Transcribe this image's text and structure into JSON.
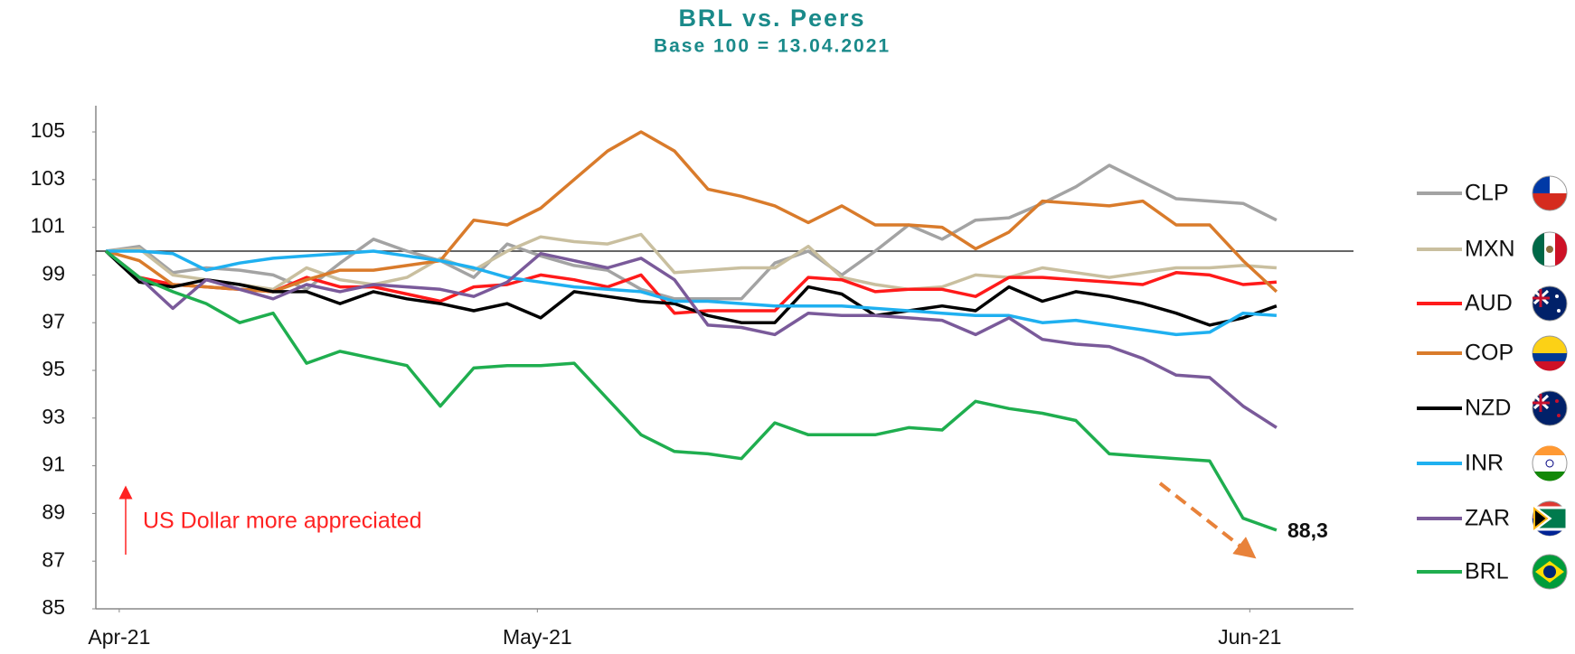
{
  "chart_data": {
    "type": "line",
    "title": "BRL vs. Peers",
    "subtitle": "Base 100 = 13.04.2021",
    "x": [
      0,
      1,
      2,
      3,
      4,
      5,
      6,
      7,
      8,
      9,
      10,
      11,
      12,
      13,
      14,
      15,
      16,
      17,
      18,
      19,
      20,
      21,
      22,
      23,
      24,
      25,
      26,
      27,
      28,
      29,
      30,
      31,
      32,
      33,
      34,
      35
    ],
    "xlim": [
      -0.3,
      37.3
    ],
    "xticks": [
      {
        "value": 0.4,
        "label": "Apr-21"
      },
      {
        "value": 12.9,
        "label": "May-21"
      },
      {
        "value": 34.2,
        "label": "Jun-21"
      }
    ],
    "ylim": [
      85,
      106.1
    ],
    "yticks": [
      85,
      87,
      89,
      91,
      93,
      95,
      97,
      99,
      101,
      103,
      105
    ],
    "grid": false,
    "reference_line": 100,
    "legend": "right",
    "series": [
      {
        "name": "CLP",
        "color": "#a3a3a3",
        "values": [
          100,
          100.2,
          99.1,
          99.3,
          99.2,
          99.0,
          98.4,
          99.5,
          100.5,
          100.0,
          99.6,
          98.9,
          100.3,
          99.8,
          99.4,
          99.2,
          98.4,
          98.0,
          98.0,
          98.0,
          99.5,
          100.0,
          99.0,
          100.0,
          101.1,
          100.5,
          101.3,
          101.4,
          102.0,
          102.7,
          103.6,
          102.9,
          102.2,
          102.1,
          102.0,
          101.3
        ]
      },
      {
        "name": "MXN",
        "color": "#c9bf9f",
        "values": [
          100,
          100.1,
          99.0,
          98.8,
          98.6,
          98.4,
          99.3,
          98.8,
          98.6,
          98.9,
          99.7,
          99.2,
          100.0,
          100.6,
          100.4,
          100.3,
          100.7,
          99.1,
          99.2,
          99.3,
          99.3,
          100.2,
          98.9,
          98.6,
          98.4,
          98.5,
          99.0,
          98.9,
          99.3,
          99.1,
          98.9,
          99.1,
          99.3,
          99.3,
          99.4,
          99.3
        ]
      },
      {
        "name": "AUD",
        "color": "#ff1a1a",
        "values": [
          100,
          98.9,
          98.6,
          98.5,
          98.4,
          98.3,
          98.9,
          98.5,
          98.5,
          98.2,
          97.9,
          98.5,
          98.6,
          99.0,
          98.8,
          98.5,
          99.0,
          97.4,
          97.5,
          97.5,
          97.5,
          98.9,
          98.8,
          98.3,
          98.4,
          98.4,
          98.1,
          98.9,
          98.9,
          98.8,
          98.7,
          98.6,
          99.1,
          99.0,
          98.6,
          98.7
        ]
      },
      {
        "name": "COP",
        "color": "#d97b2b",
        "values": [
          100,
          99.6,
          98.6,
          98.5,
          98.4,
          98.3,
          98.8,
          99.2,
          99.2,
          99.4,
          99.6,
          101.3,
          101.1,
          101.8,
          103.0,
          104.2,
          105.0,
          104.2,
          102.6,
          102.3,
          101.9,
          101.2,
          101.9,
          101.1,
          101.1,
          101.0,
          100.1,
          100.8,
          102.1,
          102.0,
          101.9,
          102.1,
          101.1,
          101.1,
          99.6,
          98.3
        ]
      },
      {
        "name": "NZD",
        "color": "#000000",
        "values": [
          100,
          98.7,
          98.5,
          98.8,
          98.6,
          98.3,
          98.3,
          97.8,
          98.3,
          98.0,
          97.8,
          97.5,
          97.8,
          97.2,
          98.3,
          98.1,
          97.9,
          97.8,
          97.3,
          97.0,
          97.0,
          98.5,
          98.2,
          97.3,
          97.5,
          97.7,
          97.5,
          98.5,
          97.9,
          98.3,
          98.1,
          97.8,
          97.4,
          96.9,
          97.2,
          97.7
        ]
      },
      {
        "name": "INR",
        "color": "#1fb0f0",
        "values": [
          100,
          100.0,
          99.9,
          99.2,
          99.5,
          99.7,
          99.8,
          99.9,
          100.0,
          99.8,
          99.6,
          99.3,
          98.9,
          98.7,
          98.5,
          98.4,
          98.3,
          97.9,
          97.9,
          97.8,
          97.7,
          97.7,
          97.7,
          97.6,
          97.5,
          97.4,
          97.3,
          97.3,
          97.0,
          97.1,
          96.9,
          96.7,
          96.5,
          96.6,
          97.4,
          97.3
        ]
      },
      {
        "name": "ZAR",
        "color": "#7a5a9a",
        "values": [
          100,
          98.9,
          97.6,
          98.8,
          98.4,
          98.0,
          98.6,
          98.3,
          98.6,
          98.5,
          98.4,
          98.1,
          98.7,
          99.9,
          99.6,
          99.3,
          99.7,
          98.8,
          96.9,
          96.8,
          96.5,
          97.4,
          97.3,
          97.3,
          97.2,
          97.1,
          96.5,
          97.2,
          96.3,
          96.1,
          96.0,
          95.5,
          94.8,
          94.7,
          93.5,
          92.6
        ]
      },
      {
        "name": "BRL",
        "color": "#1fae4f",
        "values": [
          100,
          98.9,
          98.3,
          97.8,
          97.0,
          97.4,
          95.3,
          95.8,
          95.5,
          95.2,
          93.5,
          95.1,
          95.2,
          95.2,
          95.3,
          93.8,
          92.3,
          91.6,
          91.5,
          91.3,
          92.8,
          92.3,
          92.3,
          92.3,
          92.6,
          92.5,
          93.7,
          93.4,
          93.2,
          92.9,
          91.5,
          91.4,
          91.3,
          91.2,
          88.8,
          88.3
        ]
      }
    ],
    "annotations": [
      "US Dollar more appreciated",
      "88,3"
    ]
  }
}
